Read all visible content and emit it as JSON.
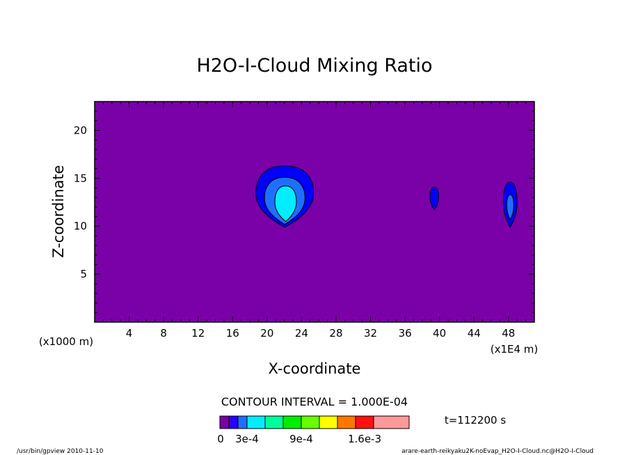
{
  "chart_data": {
    "type": "contour",
    "title": "H2O-I-Cloud Mixing Ratio",
    "xlabel": "X-coordinate",
    "ylabel": "Z-coordinate",
    "x_unit_note": "(x1E4 m)",
    "y_unit_note": "(x1000 m)",
    "xlim": [
      0,
      51
    ],
    "ylim": [
      0,
      23
    ],
    "x_ticks": [
      4,
      8,
      12,
      16,
      20,
      24,
      28,
      32,
      36,
      40,
      44,
      48
    ],
    "y_ticks": [
      5,
      10,
      15,
      20
    ],
    "contour_interval_label": "CONTOUR INTERVAL = 1.000E-04",
    "time_label": "t=112200 s",
    "background_color": "#7a00a8",
    "features": [
      {
        "name": "main cloud",
        "cx": 22.2,
        "cz": 13.0,
        "levels": [
          {
            "level": 1,
            "color": "#0000ff",
            "x": [
              18.7,
              25.4
            ],
            "z": [
              9.9,
              16.3
            ]
          },
          {
            "level": 2,
            "color": "#1f6fff",
            "x": [
              19.7,
              24.4
            ],
            "z": [
              10.2,
              15.1
            ]
          },
          {
            "level": 3,
            "color": "#00eeff",
            "x": [
              20.9,
              23.4
            ],
            "z": [
              10.5,
              14.2
            ]
          }
        ]
      },
      {
        "name": "small cell",
        "cx": 39.4,
        "cz": 12.9,
        "levels": [
          {
            "level": 1,
            "color": "#0000ff",
            "x": [
              38.9,
              39.9
            ],
            "z": [
              11.7,
              14.1
            ]
          }
        ]
      },
      {
        "name": "right cell",
        "cx": 48.2,
        "cz": 12.5,
        "levels": [
          {
            "level": 1,
            "color": "#0000ff",
            "x": [
              47.4,
              49.0
            ],
            "z": [
              9.9,
              14.6
            ]
          },
          {
            "level": 2,
            "color": "#1f6fff",
            "x": [
              47.8,
              48.6
            ],
            "z": [
              10.7,
              13.3
            ]
          }
        ]
      }
    ],
    "colorbar": {
      "colors": [
        "#7a00a8",
        "#2a00ff",
        "#1f6fff",
        "#00eeff",
        "#00ff99",
        "#00ee00",
        "#66ff00",
        "#ffff00",
        "#ff7700",
        "#ff1111",
        "#ff9999"
      ],
      "tick_labels": [
        "0",
        "3e-4",
        "9e-4",
        "1.6e-3"
      ]
    }
  },
  "footer": {
    "left": "/usr/bin/gpview   2010-11-10",
    "right": "arare-earth-reikyaku2K-noEvap_H2O-I-Cloud.nc@H2O-I-Cloud"
  }
}
